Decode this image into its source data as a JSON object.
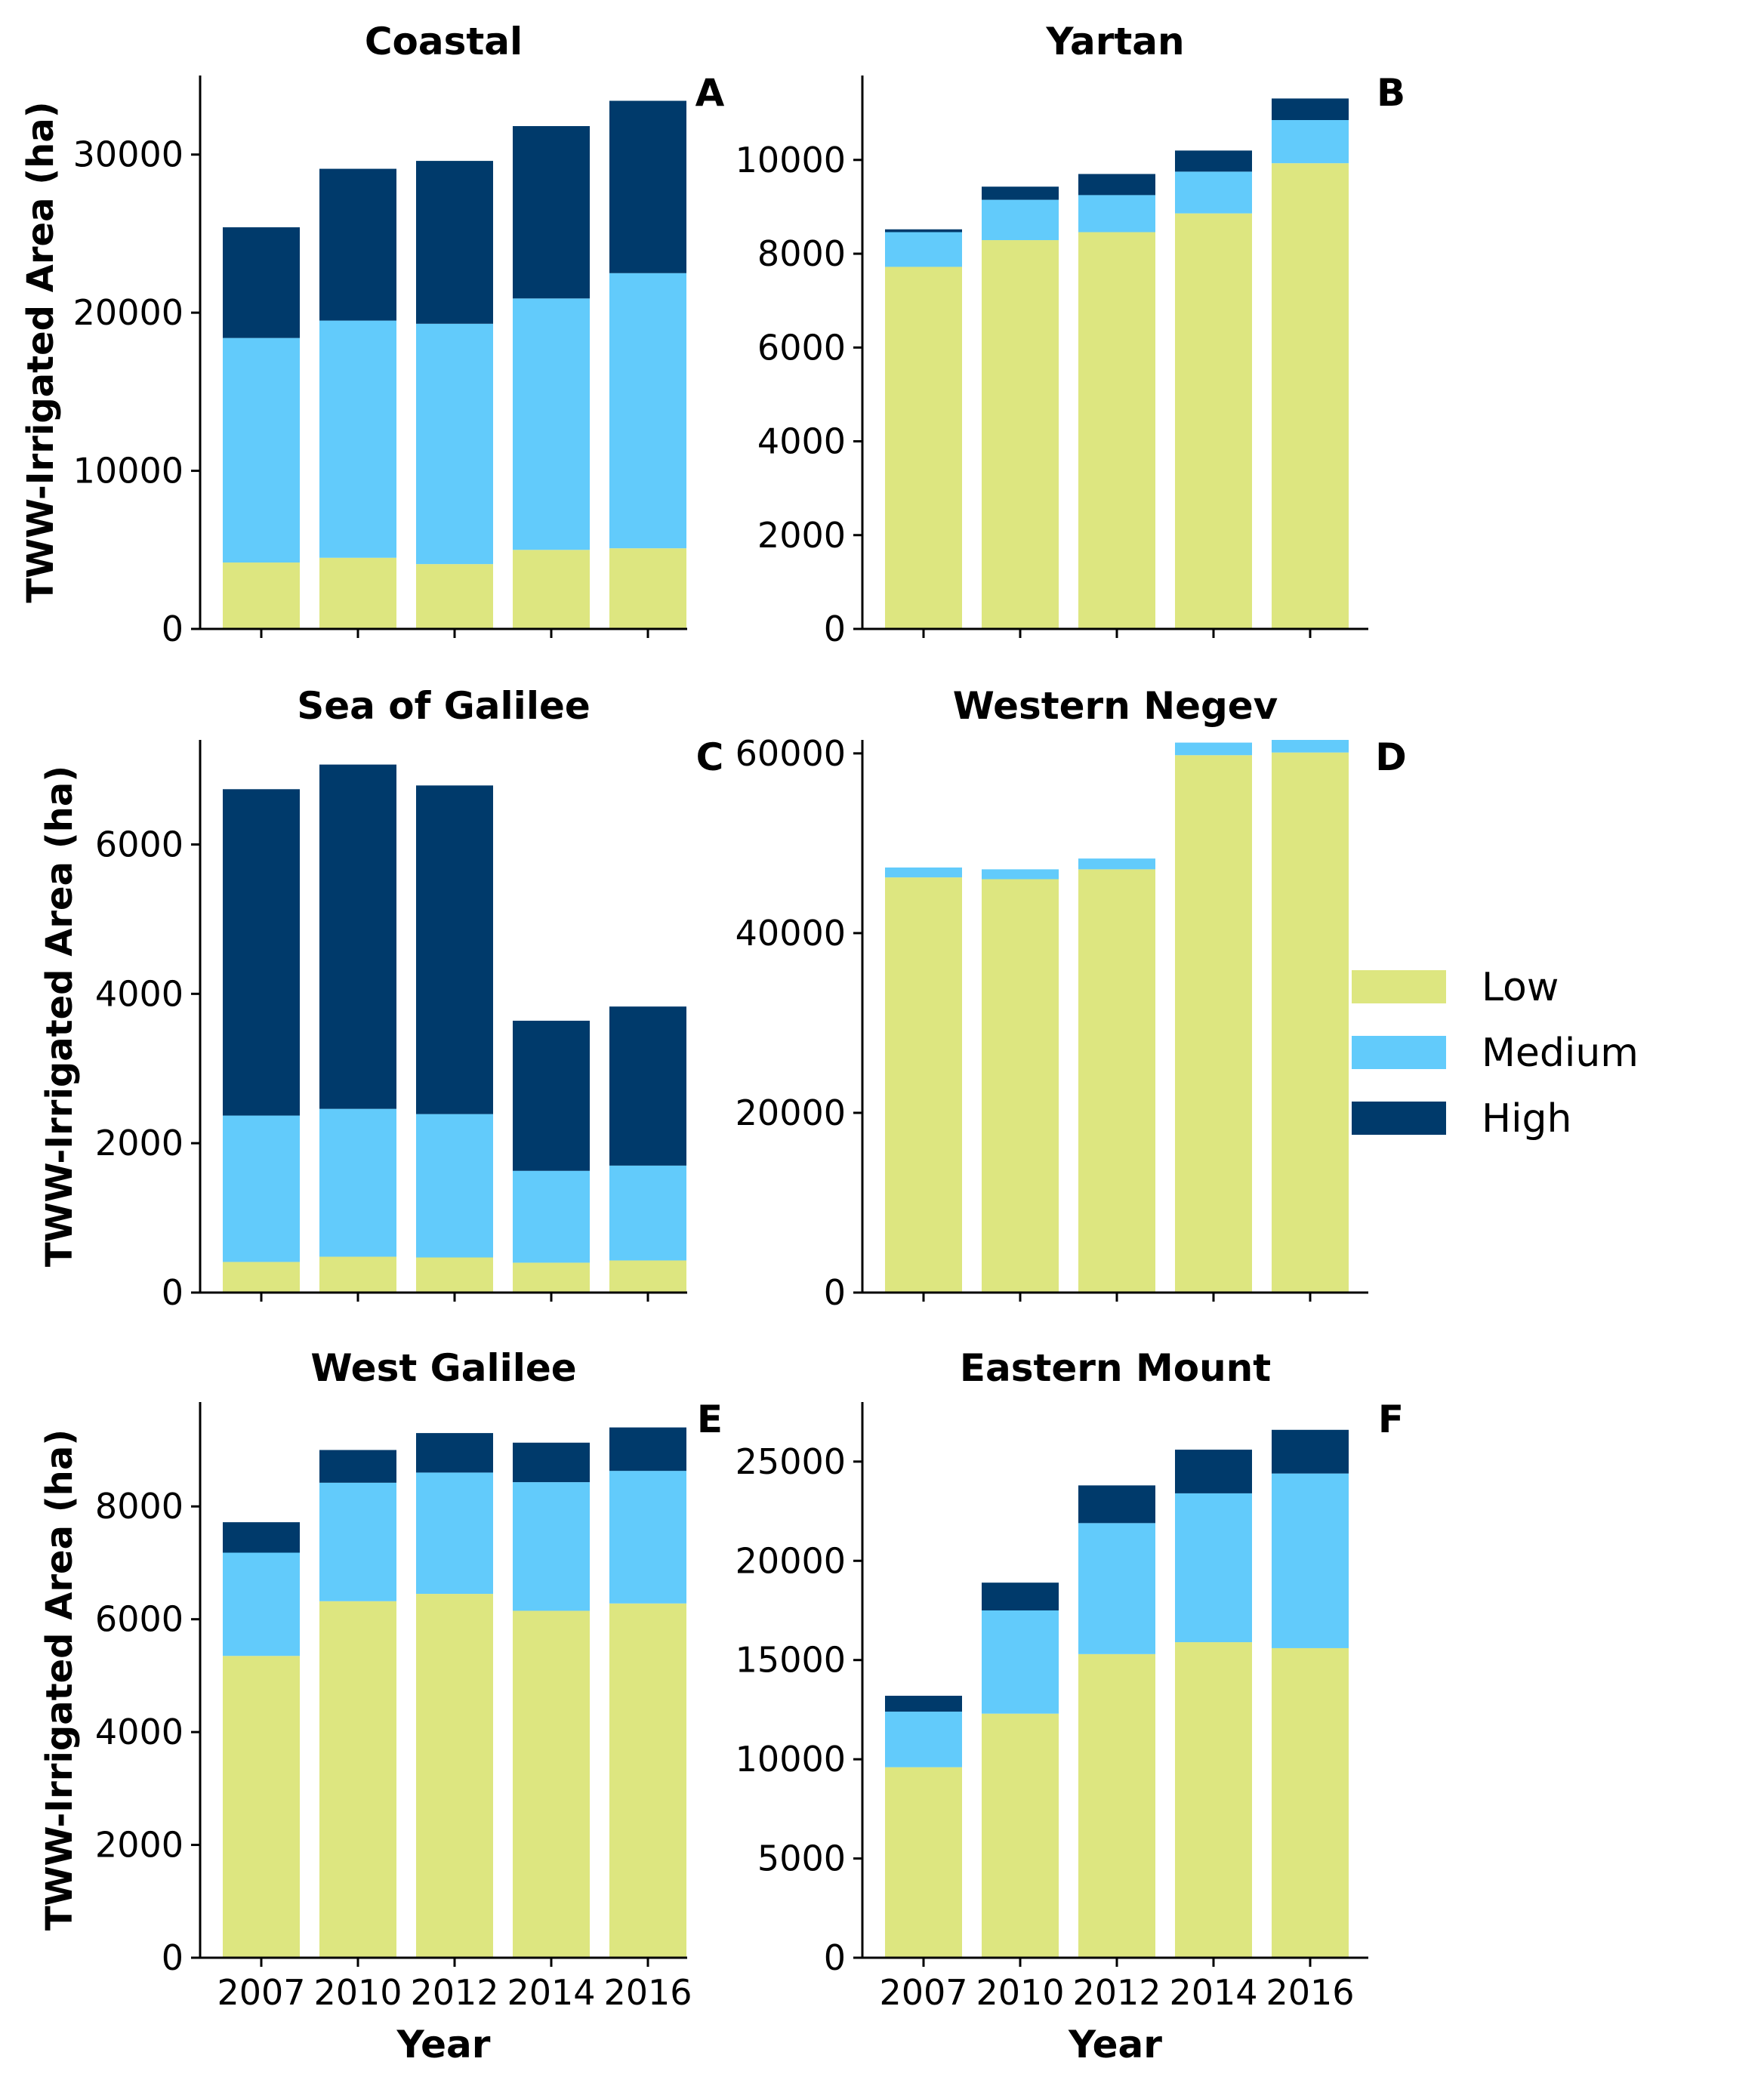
{
  "chart_data": [
    {
      "type": "bar",
      "stacked": true,
      "panel_label": "A",
      "title": "Coastal",
      "ylabel": "TWW-Irrigated Area (ha)",
      "xlabel": "",
      "categories": [
        "2007",
        "2010",
        "2012",
        "2014",
        "2016"
      ],
      "ylim": [
        0,
        35000
      ],
      "yticks": [
        0,
        10000,
        20000,
        30000
      ],
      "series": [
        {
          "name": "Low",
          "values": [
            4200,
            4500,
            4100,
            5000,
            5100
          ]
        },
        {
          "name": "Medium",
          "values": [
            14200,
            15000,
            15200,
            15900,
            17400
          ]
        },
        {
          "name": "High",
          "values": [
            7000,
            9600,
            10300,
            10900,
            10900
          ]
        }
      ]
    },
    {
      "type": "bar",
      "stacked": true,
      "panel_label": "B",
      "title": "Yartan",
      "ylabel": "",
      "xlabel": "",
      "categories": [
        "2007",
        "2010",
        "2012",
        "2014",
        "2016"
      ],
      "ylim": [
        0,
        11800
      ],
      "yticks": [
        0,
        2000,
        4000,
        6000,
        8000,
        10000
      ],
      "series": [
        {
          "name": "Low",
          "values": [
            7720,
            8290,
            8460,
            8860,
            9930
          ]
        },
        {
          "name": "Medium",
          "values": [
            740,
            860,
            790,
            890,
            920
          ]
        },
        {
          "name": "High",
          "values": [
            60,
            280,
            450,
            450,
            460
          ]
        }
      ]
    },
    {
      "type": "bar",
      "stacked": true,
      "panel_label": "C",
      "title": "Sea of Galilee",
      "ylabel": "TWW-Irrigated Area (ha)",
      "xlabel": "",
      "categories": [
        "2007",
        "2010",
        "2012",
        "2014",
        "2016"
      ],
      "ylim": [
        0,
        7400
      ],
      "yticks": [
        0,
        2000,
        4000,
        6000
      ],
      "series": [
        {
          "name": "Low",
          "values": [
            410,
            480,
            470,
            400,
            430
          ]
        },
        {
          "name": "Medium",
          "values": [
            1960,
            1980,
            1920,
            1230,
            1270
          ]
        },
        {
          "name": "High",
          "values": [
            4370,
            4610,
            4400,
            2010,
            2130
          ]
        }
      ]
    },
    {
      "type": "bar",
      "stacked": true,
      "panel_label": "D",
      "title": "Western Negev",
      "ylabel": "",
      "xlabel": "",
      "categories": [
        "2007",
        "2010",
        "2012",
        "2014",
        "2016"
      ],
      "ylim": [
        0,
        61500
      ],
      "yticks": [
        0,
        20000,
        40000,
        60000
      ],
      "series": [
        {
          "name": "Low",
          "values": [
            46200,
            46000,
            47100,
            59800,
            60100
          ]
        },
        {
          "name": "Medium",
          "values": [
            1100,
            1100,
            1200,
            1400,
            1400
          ]
        },
        {
          "name": "High",
          "values": [
            0,
            0,
            0,
            0,
            0
          ]
        }
      ]
    },
    {
      "type": "bar",
      "stacked": true,
      "panel_label": "E",
      "title": "West Galilee",
      "ylabel": "TWW-Irrigated Area (ha)",
      "xlabel": "Year",
      "categories": [
        "2007",
        "2010",
        "2012",
        "2014",
        "2016"
      ],
      "ylim": [
        0,
        9850
      ],
      "yticks": [
        0,
        2000,
        4000,
        6000,
        8000
      ],
      "series": [
        {
          "name": "Low",
          "values": [
            5350,
            6320,
            6450,
            6150,
            6280
          ]
        },
        {
          "name": "Medium",
          "values": [
            1830,
            2100,
            2150,
            2280,
            2350
          ]
        },
        {
          "name": "High",
          "values": [
            540,
            580,
            700,
            700,
            770
          ]
        }
      ]
    },
    {
      "type": "bar",
      "stacked": true,
      "panel_label": "F",
      "title": "Eastern Mount",
      "ylabel": "",
      "xlabel": "Year",
      "categories": [
        "2007",
        "2010",
        "2012",
        "2014",
        "2016"
      ],
      "ylim": [
        0,
        28000
      ],
      "yticks": [
        0,
        5000,
        10000,
        15000,
        20000,
        25000
      ],
      "series": [
        {
          "name": "Low",
          "values": [
            9600,
            12300,
            15300,
            15900,
            15600
          ]
        },
        {
          "name": "Medium",
          "values": [
            2800,
            5200,
            6600,
            7500,
            8800
          ]
        },
        {
          "name": "High",
          "values": [
            800,
            1400,
            1900,
            2200,
            2200
          ]
        }
      ]
    }
  ],
  "legend": {
    "position": "right",
    "items": [
      {
        "label": "Low",
        "color": "#dde680"
      },
      {
        "label": "Medium",
        "color": "#62cbfb"
      },
      {
        "label": "High",
        "color": "#003a6b"
      }
    ]
  },
  "colors": {
    "Low": "#dde680",
    "Medium": "#62cbfb",
    "High": "#003a6b"
  }
}
